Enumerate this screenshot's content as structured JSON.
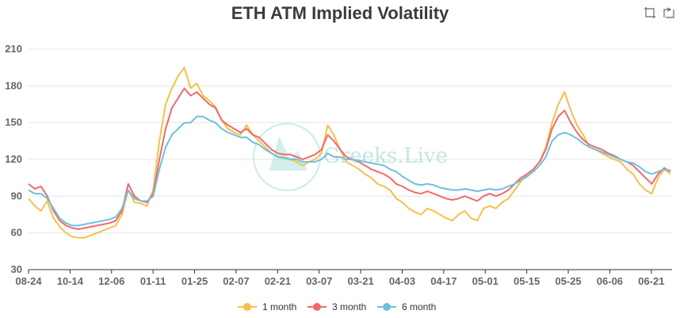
{
  "title": "ETH ATM Implied Volatility",
  "watermark": "Greeks.Live",
  "toolbar": [
    {
      "name": "zoom-area-icon"
    },
    {
      "name": "zoom-reset-icon"
    }
  ],
  "chart_data": {
    "type": "line",
    "title": "ETH ATM Implied Volatility",
    "xlabel": "",
    "ylabel": "",
    "ylim": [
      30,
      210
    ],
    "yticks": [
      30,
      60,
      90,
      120,
      150,
      180,
      210
    ],
    "xticks": [
      "08-24",
      "10-14",
      "12-06",
      "01-11",
      "01-25",
      "02-07",
      "02-21",
      "03-07",
      "03-21",
      "04-03",
      "04-17",
      "05-01",
      "05-15",
      "05-25",
      "06-06",
      "06-21"
    ],
    "grid": true,
    "legend": "bottom-center",
    "colors": {
      "1 month": "#f5c04a",
      "3 month": "#f06a6a",
      "6 month": "#6ec0dd"
    },
    "series": [
      {
        "name": "1 month",
        "values": [
          88,
          82,
          78,
          86,
          72,
          65,
          60,
          57,
          56,
          56,
          58,
          60,
          62,
          64,
          66,
          75,
          95,
          85,
          84,
          82,
          95,
          135,
          165,
          178,
          188,
          195,
          178,
          182,
          172,
          168,
          163,
          152,
          145,
          142,
          140,
          148,
          140,
          135,
          130,
          125,
          122,
          122,
          120,
          118,
          115,
          118,
          120,
          125,
          148,
          140,
          128,
          118,
          115,
          112,
          108,
          105,
          100,
          98,
          95,
          88,
          85,
          80,
          77,
          75,
          80,
          78,
          75,
          72,
          70,
          75,
          78,
          72,
          70,
          80,
          82,
          80,
          85,
          88,
          95,
          102,
          108,
          112,
          118,
          130,
          150,
          165,
          175,
          160,
          148,
          140,
          130,
          128,
          125,
          122,
          120,
          118,
          112,
          108,
          100,
          95,
          92,
          105,
          112,
          108
        ]
      },
      {
        "name": "3 month",
        "values": [
          100,
          96,
          98,
          90,
          78,
          70,
          66,
          64,
          63,
          64,
          65,
          66,
          67,
          68,
          70,
          78,
          100,
          90,
          86,
          85,
          92,
          120,
          145,
          162,
          170,
          178,
          172,
          175,
          170,
          165,
          162,
          152,
          148,
          145,
          142,
          145,
          140,
          138,
          133,
          128,
          125,
          124,
          124,
          122,
          120,
          122,
          124,
          128,
          140,
          135,
          128,
          122,
          120,
          118,
          115,
          112,
          110,
          108,
          105,
          100,
          98,
          95,
          93,
          92,
          94,
          92,
          90,
          88,
          87,
          88,
          90,
          88,
          86,
          90,
          92,
          90,
          92,
          95,
          100,
          105,
          108,
          112,
          118,
          128,
          145,
          155,
          160,
          150,
          142,
          136,
          132,
          130,
          128,
          125,
          123,
          120,
          118,
          115,
          110,
          105,
          100,
          108,
          113,
          110
        ]
      },
      {
        "name": "6 month",
        "values": [
          95,
          92,
          92,
          88,
          80,
          72,
          68,
          66,
          66,
          67,
          68,
          69,
          70,
          71,
          73,
          80,
          95,
          88,
          86,
          86,
          90,
          112,
          130,
          140,
          145,
          150,
          150,
          155,
          155,
          152,
          150,
          145,
          142,
          140,
          138,
          138,
          134,
          132,
          128,
          125,
          122,
          121,
          120,
          120,
          118,
          118,
          118,
          120,
          125,
          122,
          122,
          120,
          120,
          119,
          118,
          117,
          116,
          115,
          112,
          110,
          106,
          103,
          100,
          99,
          100,
          99,
          97,
          96,
          95,
          95,
          96,
          95,
          94,
          95,
          96,
          95,
          96,
          98,
          100,
          103,
          106,
          110,
          115,
          122,
          135,
          140,
          142,
          140,
          137,
          133,
          130,
          128,
          126,
          124,
          122,
          120,
          118,
          117,
          114,
          110,
          108,
          110,
          112,
          111
        ]
      }
    ]
  }
}
